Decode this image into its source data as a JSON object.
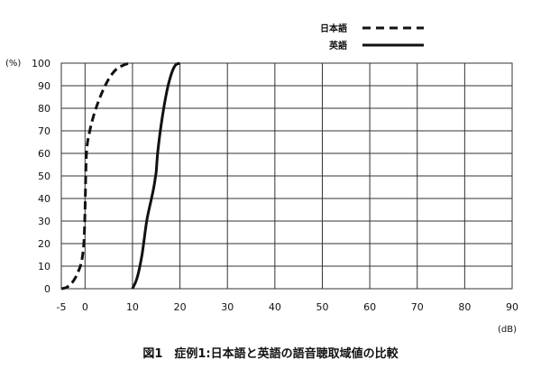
{
  "chart_data": {
    "type": "line",
    "title": "",
    "caption": "図1　症例1:日本語と英語の語音聴取域値の比較",
    "ylabel": "(%)",
    "xlabel": "(dB)",
    "xlim": [
      -5,
      90
    ],
    "ylim": [
      0,
      100
    ],
    "xticks": [
      "-5",
      "0",
      "10",
      "20",
      "30",
      "40",
      "50",
      "60",
      "70",
      "80",
      "90"
    ],
    "yticks": [
      "0",
      "10",
      "20",
      "30",
      "40",
      "50",
      "60",
      "70",
      "80",
      "90",
      "100"
    ],
    "grid": true,
    "legend_position": "top-right",
    "series": [
      {
        "name": "日本語",
        "style": "dashed",
        "color": "#111111",
        "x": [
          -5,
          -4,
          -3,
          -2,
          -1,
          -0.5,
          -0.2,
          0,
          0.3,
          1,
          2,
          3,
          4,
          5,
          6,
          7,
          8,
          9,
          9.5
        ],
        "y": [
          0,
          0.5,
          2,
          5,
          10,
          15,
          22,
          35,
          60,
          70,
          78,
          84,
          89,
          93,
          96,
          98,
          99,
          99.8,
          100
        ]
      },
      {
        "name": "英語",
        "style": "solid",
        "color": "#111111",
        "x": [
          10,
          11,
          12,
          13,
          14,
          14.5,
          14.8,
          15,
          15.3,
          16,
          17,
          18,
          19,
          20
        ],
        "y": [
          0,
          5,
          15,
          30,
          40,
          45,
          49,
          52,
          60,
          72,
          85,
          94,
          99,
          100
        ]
      }
    ]
  }
}
